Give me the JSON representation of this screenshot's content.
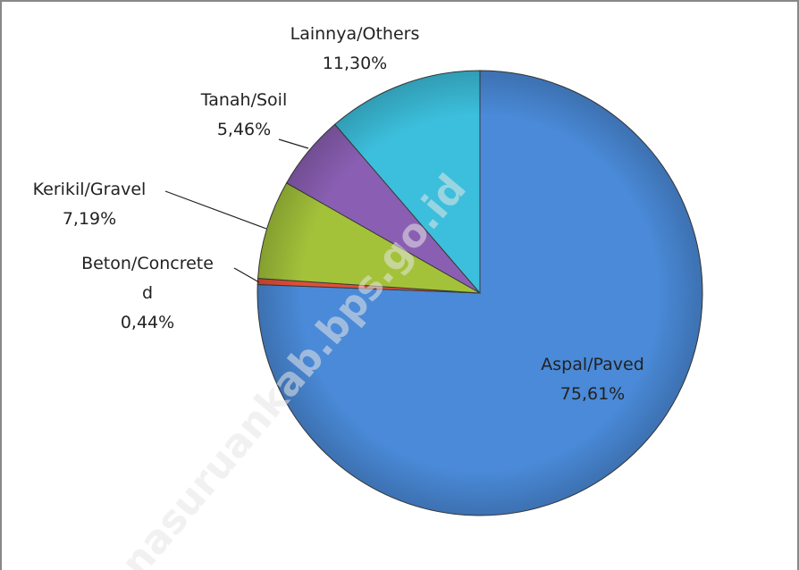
{
  "chart_data": {
    "type": "pie",
    "categories": [
      "Aspal/Paved",
      "Beton/Concreted",
      "Kerikil/Gravel",
      "Tanah/Soil",
      "Lainnya/Others"
    ],
    "values": [
      75.61,
      0.44,
      7.19,
      5.46,
      11.3
    ],
    "value_labels": [
      "75,61%",
      "0,44%",
      "7,19%",
      "5,46%",
      "11,30%"
    ],
    "colors": [
      "#4a8ad8",
      "#e0503a",
      "#a3c23a",
      "#8a5fb3",
      "#3cbfdc"
    ],
    "watermark": "nasuruankab.bps.go.id"
  }
}
